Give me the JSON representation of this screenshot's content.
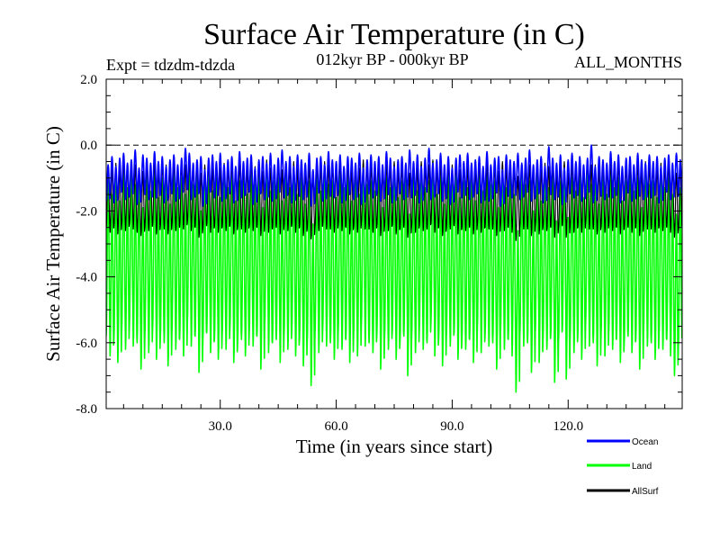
{
  "chart_data": {
    "type": "line",
    "title": "Surface Air Temperature (in C)",
    "subtitle_left": "Expt = tdzdm-tdzda",
    "subtitle_center": "012kyr BP - 000kyr BP",
    "subtitle_right": "ALL_MONTHS",
    "xlabel": "Time (in years since start)",
    "ylabel": "Surface Air Temperature (in C)",
    "xlim": [
      0.5,
      149.5
    ],
    "ylim": [
      -8.0,
      2.0
    ],
    "x_ticks": [
      30,
      60,
      90,
      120
    ],
    "x_tick_labels": [
      "30.0",
      "60.0",
      "90.0",
      "120.0"
    ],
    "y_ticks": [
      -8,
      -6,
      -4,
      -2,
      0,
      2
    ],
    "y_tick_labels": [
      "-8.0",
      "-6.0",
      "-4.0",
      "-2.0",
      "0.0",
      "2.0"
    ],
    "reference_line": 0.0,
    "months_per_year": 12,
    "series": [
      {
        "name": "Ocean",
        "color": "#0000ff",
        "cycle_max": -0.45,
        "cycle_min": -1.55,
        "annual_anomalies": [
          -0.15,
          0.1,
          -0.2,
          0.05,
          0.2,
          -0.1,
          0.0,
          0.3,
          -0.25,
          0.15,
          0.05,
          -0.1,
          0.25,
          -0.05,
          0.1,
          -0.2,
          0.0,
          0.15,
          -0.15,
          0.05,
          0.35,
          0.2,
          -0.1,
          0.0,
          0.1,
          -0.3,
          0.05,
          0.15,
          -0.05,
          0.2,
          -0.15,
          0.0,
          0.1,
          -0.2,
          0.25,
          -0.05,
          0.05,
          0.15,
          -0.25,
          0.0,
          0.1,
          -0.1,
          0.2,
          -0.15,
          0.05,
          0.3,
          -0.05,
          0.1,
          -0.2,
          0.15,
          0.0,
          -0.1,
          0.2,
          -0.3,
          0.05,
          0.1,
          -0.15,
          0.25,
          0.0,
          -0.05,
          0.15,
          -0.2,
          0.1,
          0.05,
          -0.1,
          0.2,
          -0.25,
          0.0,
          0.15,
          -0.05,
          0.1,
          -0.15,
          0.25,
          0.05,
          -0.2,
          0.0,
          0.1,
          -0.1,
          0.3,
          -0.05,
          0.15,
          -0.2,
          0.05,
          0.35,
          -0.1,
          0.0,
          0.2,
          -0.15,
          0.1,
          -0.25,
          0.05,
          0.15,
          -0.05,
          0.2,
          -0.1,
          0.0,
          0.1,
          -0.2,
          0.25,
          -0.15,
          0.05,
          0.1,
          -0.3,
          0.15,
          0.0,
          -0.05,
          0.2,
          -0.1,
          0.05,
          0.3,
          -0.15,
          0.0,
          0.1,
          -0.2,
          0.4,
          0.05,
          -0.1,
          0.15,
          -0.25,
          0.0,
          0.2,
          -0.05,
          0.1,
          -0.15,
          0.05,
          0.45,
          -0.2,
          0.1,
          0.0,
          -0.1,
          0.25,
          -0.05,
          0.15,
          -0.2,
          0.05,
          0.1,
          -0.15,
          0.2,
          0.0,
          -0.1,
          0.15,
          -0.05,
          0.1,
          -0.2,
          0.05,
          0.15,
          -0.1,
          0.2,
          0.0
        ]
      },
      {
        "name": "Land",
        "color": "#00ff00",
        "cycle_max": -1.1,
        "cycle_min": -6.0,
        "annual_anomalies": [
          0.2,
          -0.4,
          0.1,
          -0.6,
          0.3,
          -0.2,
          0.5,
          -0.1,
          0.0,
          -0.8,
          0.2,
          -0.3,
          0.4,
          -0.5,
          0.1,
          0.0,
          -0.7,
          0.3,
          -0.2,
          0.1,
          -0.4,
          0.6,
          -0.1,
          0.2,
          -0.9,
          0.0,
          0.3,
          -0.3,
          0.1,
          -0.5,
          0.2,
          -0.2,
          0.4,
          -0.6,
          0.0,
          0.1,
          -0.4,
          0.3,
          -0.1,
          0.2,
          -0.8,
          0.5,
          -0.3,
          0.0,
          0.1,
          -0.6,
          0.2,
          -0.2,
          0.3,
          -0.4,
          0.1,
          -0.7,
          0.0,
          -1.3,
          0.2,
          -0.3,
          0.4,
          -0.1,
          0.0,
          -0.5,
          0.3,
          -0.2,
          0.1,
          -0.6,
          0.2,
          -0.4,
          0.5,
          -0.1,
          0.0,
          -0.3,
          0.2,
          -0.8,
          0.1,
          -0.2,
          0.3,
          -0.5,
          0.0,
          0.2,
          -1.0,
          0.1,
          -0.3,
          0.4,
          -0.2,
          0.0,
          0.6,
          -0.4,
          0.1,
          -0.7,
          0.2,
          -0.1,
          0.3,
          -0.5,
          0.0,
          -0.2,
          0.1,
          -0.6,
          0.4,
          -0.3,
          0.2,
          -0.1,
          0.0,
          -0.8,
          0.3,
          -0.2,
          0.1,
          -0.4,
          -1.5,
          0.2,
          -0.1,
          0.0,
          -0.9,
          0.3,
          -0.6,
          0.1,
          -0.2,
          0.2,
          -1.2,
          0.0,
          0.4,
          -1.1,
          0.1,
          -0.3,
          0.2,
          -0.5,
          0.5,
          -0.1,
          0.0,
          -0.7,
          0.2,
          -0.4,
          0.3,
          -0.2,
          0.1,
          -0.6,
          0.0,
          0.2,
          -0.3,
          0.1,
          -0.8,
          0.3,
          -0.1,
          0.0,
          -0.5,
          0.2,
          -0.2,
          0.1,
          -0.4,
          -1.0,
          -0.2
        ]
      },
      {
        "name": "AllSurf",
        "color": "#000000",
        "cycle_max": -0.6,
        "cycle_min": -2.55,
        "annual_anomalies": [
          0.0,
          -0.1,
          0.05,
          -0.15,
          0.1,
          -0.05,
          0.15,
          0.0,
          -0.1,
          -0.2,
          0.05,
          -0.05,
          0.1,
          -0.15,
          0.05,
          0.0,
          -0.15,
          0.1,
          -0.05,
          0.05,
          0.0,
          0.2,
          -0.05,
          0.05,
          -0.25,
          0.0,
          0.1,
          -0.1,
          0.05,
          -0.1,
          0.05,
          -0.05,
          0.1,
          -0.15,
          0.05,
          0.0,
          -0.1,
          0.1,
          -0.05,
          0.05,
          -0.2,
          0.15,
          -0.1,
          0.0,
          0.05,
          -0.15,
          0.05,
          -0.05,
          0.1,
          -0.1,
          0.05,
          -0.2,
          0.0,
          -0.3,
          0.05,
          -0.05,
          0.1,
          0.0,
          0.0,
          -0.1,
          0.1,
          -0.05,
          0.05,
          -0.15,
          0.05,
          -0.1,
          0.15,
          0.0,
          0.0,
          -0.1,
          0.05,
          -0.2,
          0.05,
          -0.05,
          0.1,
          -0.15,
          0.0,
          0.05,
          -0.25,
          0.05,
          -0.1,
          0.1,
          -0.05,
          0.0,
          0.15,
          -0.1,
          0.05,
          -0.2,
          0.05,
          0.0,
          0.1,
          -0.15,
          0.0,
          -0.05,
          0.05,
          -0.15,
          0.1,
          -0.1,
          0.05,
          0.0,
          0.0,
          -0.2,
          0.1,
          -0.05,
          0.05,
          -0.1,
          -0.35,
          0.05,
          0.0,
          0.0,
          -0.2,
          0.1,
          -0.15,
          0.05,
          -0.05,
          0.05,
          -0.25,
          0.0,
          0.1,
          -0.25,
          0.05,
          -0.1,
          0.05,
          -0.1,
          0.15,
          0.0,
          0.0,
          -0.15,
          0.05,
          -0.1,
          0.1,
          -0.05,
          0.05,
          -0.15,
          0.0,
          0.05,
          -0.1,
          0.05,
          -0.2,
          0.1,
          0.0,
          0.0,
          -0.1,
          0.05,
          -0.05,
          0.05,
          -0.1,
          -0.25,
          -0.05
        ]
      }
    ],
    "legend_position": "bottom-right"
  }
}
